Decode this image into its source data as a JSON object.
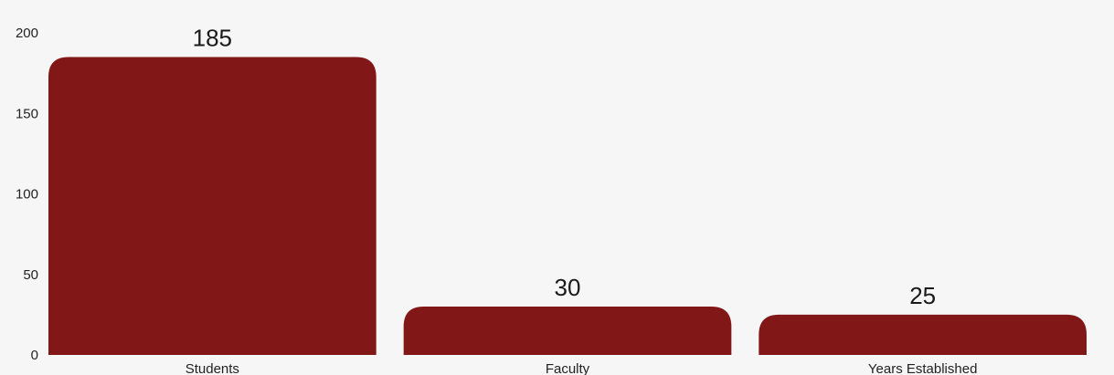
{
  "chart_data": {
    "type": "bar",
    "categories": [
      "Students",
      "Faculty",
      "Years Established"
    ],
    "values": [
      185,
      30,
      25
    ],
    "value_labels": [
      "185",
      "30",
      "25"
    ],
    "ylim": [
      0,
      200
    ],
    "yticks": [
      0,
      50,
      100,
      150,
      200
    ],
    "ytick_labels": [
      "0",
      "50",
      "100",
      "150",
      "200"
    ],
    "grid": false,
    "legend": "none",
    "bar_color": "#821717",
    "bar_corners": "rounded-top"
  }
}
